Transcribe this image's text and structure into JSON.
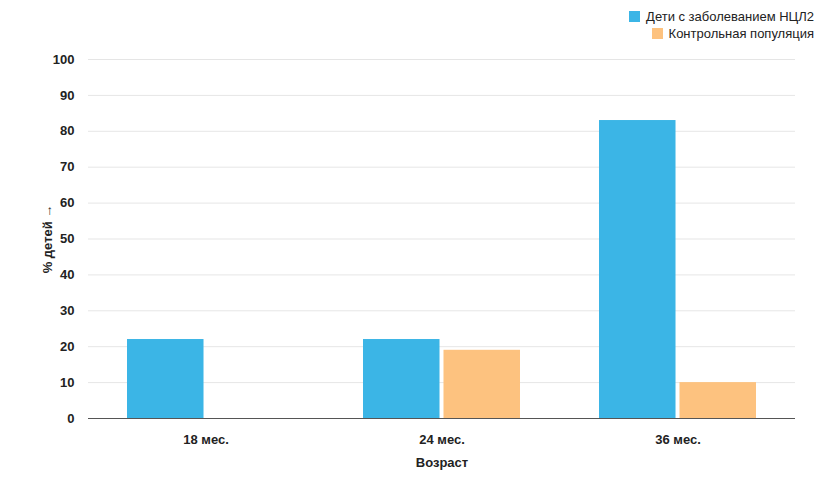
{
  "chart_data": {
    "type": "bar",
    "categories": [
      "18 мес.",
      "24 мес.",
      "36 мес."
    ],
    "series": [
      {
        "name": "Дети с заболеванием НЦЛ2",
        "color": "#3bb5e6",
        "values": [
          22,
          22,
          83
        ]
      },
      {
        "name": "Контрольная популяция",
        "color": "#fdc27f",
        "values": [
          null,
          19,
          10
        ]
      }
    ],
    "x_label": "Возраст",
    "y_label": "% детей",
    "ylim": [
      0,
      100
    ],
    "yticks": [
      0,
      10,
      20,
      30,
      40,
      50,
      60,
      70,
      80,
      90,
      100
    ],
    "grid": true,
    "legend": "top-right"
  }
}
